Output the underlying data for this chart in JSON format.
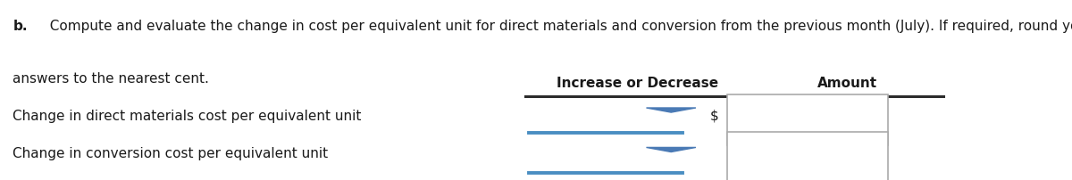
{
  "title_bold": "b.",
  "title_rest": "  Compute and evaluate the change in cost per equivalent unit for direct materials and conversion from the previous month (July). If required, round your",
  "title_line2": "answers to the nearest cent.",
  "col1_header": "Increase or Decrease",
  "col2_header": "Amount",
  "row1_label": "Change in direct materials cost per equivalent unit",
  "row2_label": "Change in conversion cost per equivalent unit",
  "background_color": "#ffffff",
  "header_line_color": "#2b2b2b",
  "dropdown_line_color": "#4a8ec2",
  "arrow_color": "#4a7ab5",
  "box_line_color": "#aaaaaa",
  "dollar_sign": "$",
  "font_size_title": 11,
  "font_size_header": 11,
  "font_size_row": 11
}
